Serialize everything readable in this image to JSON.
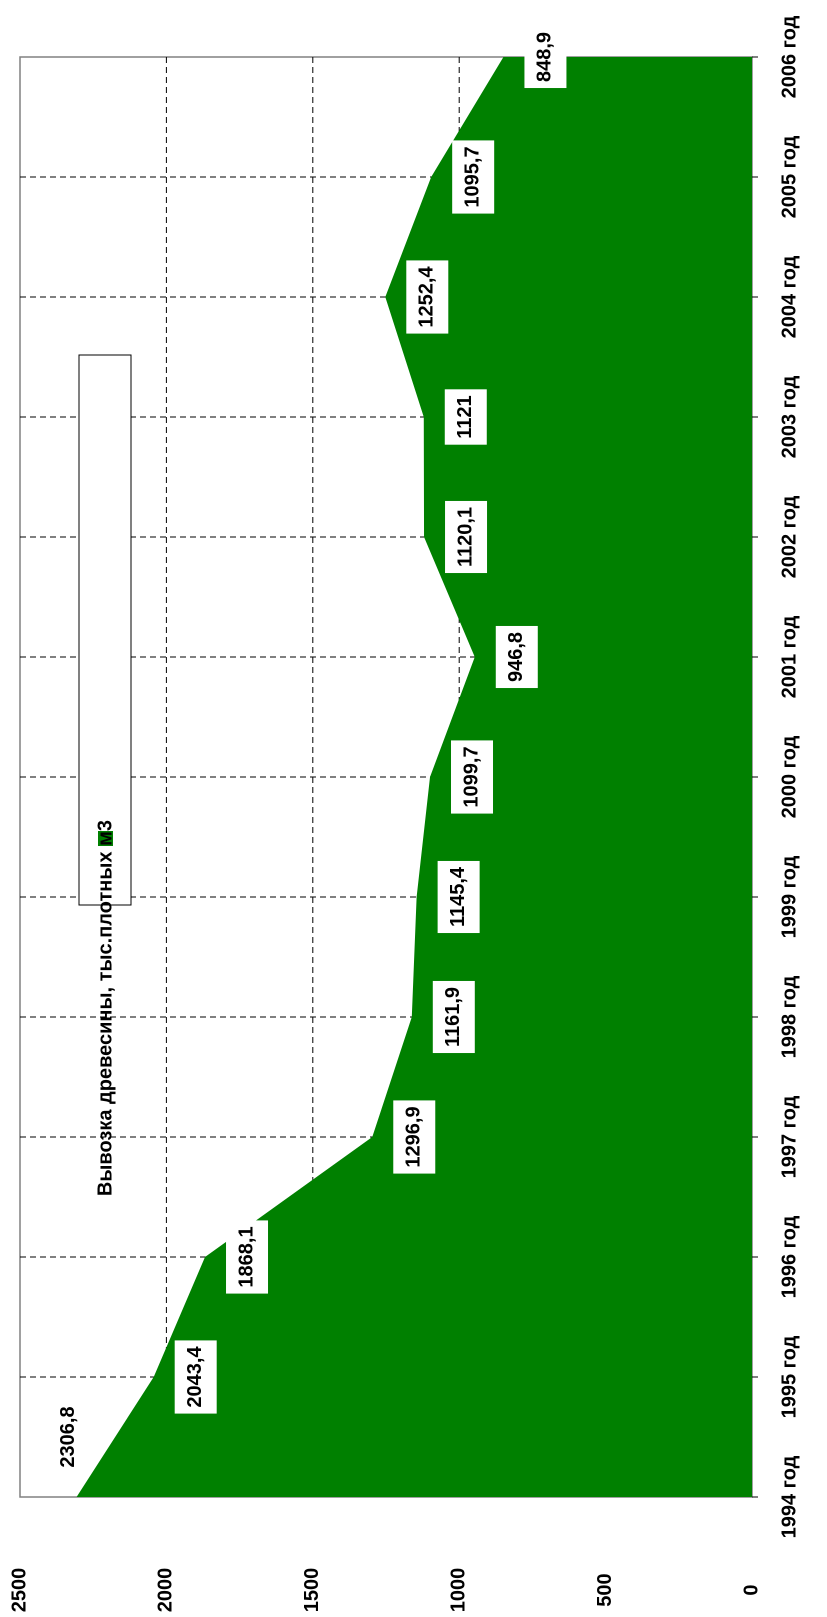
{
  "chart_data": {
    "type": "area",
    "categories": [
      "1994 год",
      "1995 год",
      "1996 год",
      "1997 год",
      "1998 год",
      "1999 год",
      "2000 год",
      "2001 год",
      "2002 год",
      "2003 год",
      "2004 год",
      "2005 год",
      "2006 год"
    ],
    "series": [
      {
        "name": "Вывозка древесины, тыс.плотных м3",
        "color": "#008000",
        "values": [
          2306.8,
          2043.4,
          1868.1,
          1296.9,
          1161.9,
          1145.4,
          1099.7,
          946.8,
          1120.1,
          1121,
          1252.4,
          1095.7,
          848.9
        ],
        "value_labels": [
          "2306,8",
          "2043,4",
          "1868,1",
          "1296,9",
          "1161,9",
          "1145,4",
          "1099,7",
          "946,8",
          "1120,1",
          "1121",
          "1252,4",
          "1095,7",
          "848,9"
        ]
      }
    ],
    "ylim": [
      0,
      2500
    ],
    "yticks": [
      0,
      500,
      1000,
      1500,
      2000,
      2500
    ],
    "grid": true
  }
}
